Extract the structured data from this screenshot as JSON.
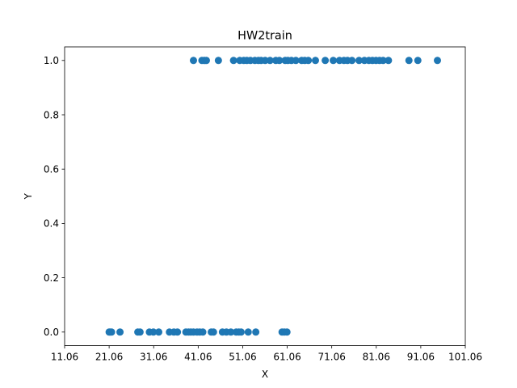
{
  "chart_data": {
    "type": "scatter",
    "title": "HW2train",
    "xlabel": "X",
    "ylabel": "Y",
    "xlim": [
      11.06,
      101.06
    ],
    "ylim": [
      -0.05,
      1.05
    ],
    "xticks": [
      "11.06",
      "21.06",
      "31.06",
      "41.06",
      "51.06",
      "61.06",
      "71.06",
      "81.06",
      "91.06",
      "101.06"
    ],
    "yticks": [
      "0.0",
      "0.2",
      "0.4",
      "0.6",
      "0.8",
      "1.0"
    ],
    "grid": false,
    "legend": "none",
    "marker_color": "#1f77b4",
    "series": [
      {
        "x": [
          21.06,
          21.3,
          21.6,
          23.5,
          27.5,
          28.0,
          30.1,
          31.0,
          32.2,
          34.6,
          35.6,
          36.4,
          38.3,
          38.9,
          39.4,
          40.0,
          40.8,
          41.4,
          42.1,
          44.0,
          44.5,
          46.5,
          47.4,
          48.4,
          49.6,
          50.2,
          50.7,
          52.3,
          54.0,
          59.9,
          60.4,
          61.0
        ],
        "y": [
          0,
          0,
          0,
          0,
          0,
          0,
          0,
          0,
          0,
          0,
          0,
          0,
          0,
          0,
          0,
          0,
          0,
          0,
          0,
          0,
          0,
          0,
          0,
          0,
          0,
          0,
          0,
          0,
          0,
          0,
          0,
          0
        ]
      },
      {
        "x": [
          40.0,
          41.9,
          42.4,
          42.9,
          45.6,
          49.0,
          50.4,
          51.3,
          52.0,
          52.8,
          53.8,
          54.6,
          55.2,
          56.1,
          57.2,
          58.5,
          59.3,
          60.6,
          61.2,
          62.0,
          63.0,
          64.3,
          65.0,
          65.8,
          67.4,
          69.6,
          71.4,
          72.8,
          73.8,
          74.6,
          75.6,
          77.2,
          78.4,
          79.4,
          80.2,
          81.0,
          81.8,
          82.6,
          83.8,
          88.4,
          90.4,
          94.8
        ],
        "y": [
          1,
          1,
          1,
          1,
          1,
          1,
          1,
          1,
          1,
          1,
          1,
          1,
          1,
          1,
          1,
          1,
          1,
          1,
          1,
          1,
          1,
          1,
          1,
          1,
          1,
          1,
          1,
          1,
          1,
          1,
          1,
          1,
          1,
          1,
          1,
          1,
          1,
          1,
          1,
          1,
          1,
          1
        ]
      }
    ]
  }
}
